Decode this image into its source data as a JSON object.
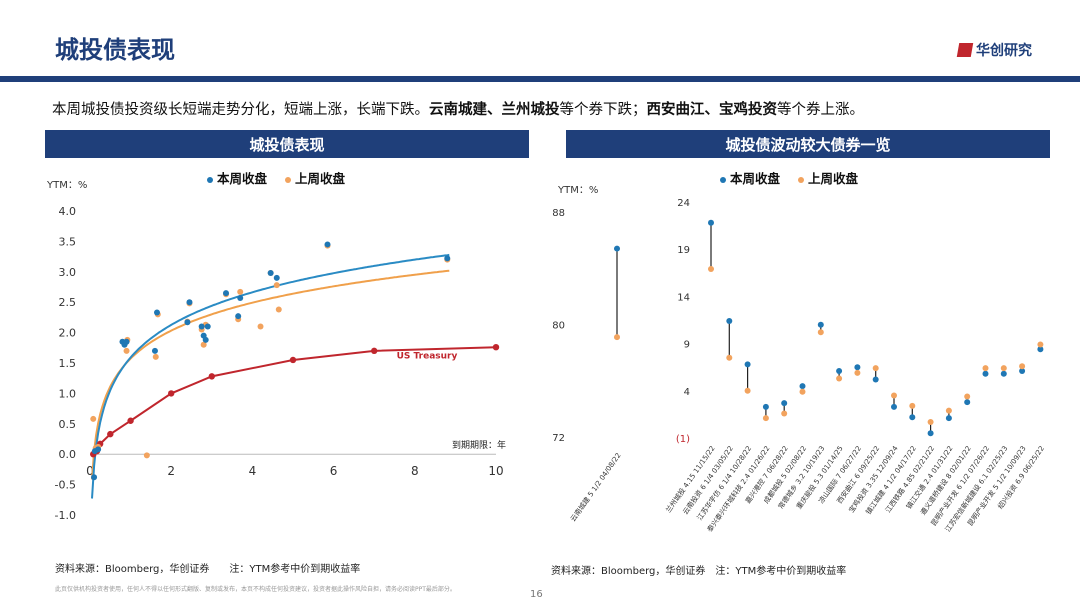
{
  "header": {
    "title": "城投债表现",
    "brand": "华创研究"
  },
  "summary": {
    "part1": "本周城投债投资级长短端走势分化，短端上涨，长端下跌。",
    "bold1": "云南城建、兰州城投",
    "part2": "等个券下跌；",
    "bold2": "西安曲江、宝鸡投资",
    "part3": "等个券上涨。"
  },
  "colors": {
    "navy": "#1f3f7a",
    "this_week": "#1f77b4",
    "last_week": "#f2a35e",
    "treasury": "#c0262d",
    "fit_this": "#2a8bc4",
    "fit_last": "#f0a04b"
  },
  "left_panel": {
    "header": "城投债表现",
    "ylabel": "YTM：%",
    "xlabel": "到期期限：年",
    "legend": [
      "本周收盘",
      "上周收盘"
    ],
    "treasury_label": "US Treasury",
    "source": "资料来源：Bloomberg，华创证券　　注：YTM参考中价到期收益率"
  },
  "right_panel": {
    "header": "城投债波动较大债券一览",
    "ylabel": "YTM：%",
    "legend": [
      "本周收盘",
      "上周收盘"
    ],
    "source": "资料来源：Bloomberg，华创证券　注：YTM参考中价到期收益率"
  },
  "footer": {
    "disclaimer": "此页仅供机构投资者使用，任何人不得以任何形式翻版、复制或发布，本页不构成任何投资建议，投资者据此操作风险自担，请务必阅读PPT最后部分。",
    "page": "16"
  },
  "chart_data": [
    {
      "type": "scatter",
      "title": "城投债表现",
      "xlabel": "到期期限：年",
      "ylabel": "YTM：%",
      "xlim": [
        0,
        10
      ],
      "ylim": [
        -1.0,
        4.0
      ],
      "xticks": [
        "0",
        "2",
        "4",
        "6",
        "8",
        "10"
      ],
      "yticks": [
        "4.0",
        "3.5",
        "3.0",
        "2.5",
        "2.0",
        "1.5",
        "1.0",
        "0.5",
        "0.0",
        "-0.5",
        "-1.0"
      ],
      "grid": false,
      "legend_position": "top",
      "series": [
        {
          "name": "本周收盘",
          "points": [
            [
              0.1,
              -0.38
            ],
            [
              0.12,
              0.05
            ],
            [
              0.2,
              0.08
            ],
            [
              0.8,
              1.85
            ],
            [
              0.85,
              1.8
            ],
            [
              0.9,
              1.85
            ],
            [
              1.6,
              1.7
            ],
            [
              1.65,
              2.33
            ],
            [
              2.4,
              2.17
            ],
            [
              2.45,
              2.5
            ],
            [
              2.75,
              2.1
            ],
            [
              2.8,
              1.95
            ],
            [
              2.85,
              1.88
            ],
            [
              2.9,
              2.1
            ],
            [
              3.35,
              2.65
            ],
            [
              3.65,
              2.27
            ],
            [
              3.7,
              2.57
            ],
            [
              4.45,
              2.98
            ],
            [
              4.6,
              2.9
            ],
            [
              5.85,
              3.45
            ],
            [
              8.8,
              3.22
            ]
          ]
        },
        {
          "name": "上周收盘",
          "points": [
            [
              0.08,
              0.58
            ],
            [
              0.14,
              0.1
            ],
            [
              0.2,
              0.12
            ],
            [
              0.85,
              1.82
            ],
            [
              0.9,
              1.7
            ],
            [
              0.92,
              1.88
            ],
            [
              1.4,
              -0.02
            ],
            [
              1.62,
              1.6
            ],
            [
              1.67,
              2.3
            ],
            [
              2.4,
              2.18
            ],
            [
              2.45,
              2.48
            ],
            [
              2.75,
              2.05
            ],
            [
              2.8,
              1.8
            ],
            [
              2.85,
              2.13
            ],
            [
              3.35,
              2.63
            ],
            [
              3.65,
              2.22
            ],
            [
              3.7,
              2.67
            ],
            [
              4.2,
              2.1
            ],
            [
              4.45,
              2.98
            ],
            [
              4.6,
              2.78
            ],
            [
              4.65,
              2.38
            ],
            [
              5.85,
              3.43
            ],
            [
              8.8,
              3.2
            ]
          ]
        },
        {
          "name": "US Treasury",
          "points": [
            [
              0.08,
              0.0
            ],
            [
              0.17,
              0.05
            ],
            [
              0.25,
              0.17
            ],
            [
              0.5,
              0.33
            ],
            [
              1.0,
              0.55
            ],
            [
              2.0,
              1.0
            ],
            [
              3.0,
              1.28
            ],
            [
              5.0,
              1.55
            ],
            [
              7.0,
              1.7
            ],
            [
              10.0,
              1.76
            ]
          ]
        }
      ]
    },
    {
      "type": "scatter",
      "title": "城投债波动较大债券一览",
      "ylabel": "YTM：%",
      "ylim": [
        72,
        88
      ],
      "yticks": [
        "88",
        "80",
        "72"
      ],
      "grid": false,
      "categories": [
        "云南城建 5 1/2 04/08/22"
      ],
      "series": [
        {
          "name": "本周收盘",
          "values": [
            85.4
          ]
        },
        {
          "name": "上周收盘",
          "values": [
            79.1
          ]
        }
      ]
    },
    {
      "type": "scatter",
      "title": "城投债波动较大债券一览",
      "ylabel": "YTM：%",
      "ylim": [
        -1,
        24
      ],
      "yticks": [
        "24",
        "19",
        "14",
        "9",
        "4",
        "(1)"
      ],
      "grid": false,
      "legend_position": "top",
      "categories": [
        "兰州城投 4.15 11/15/22",
        "云南投资 6 1/4 03/05/22",
        "江苏华宇仿 6 1/4 10/28/22",
        "泰兴泰兴环城科技 2.4 01/26/22",
        "嘉兴港控 7 06/28/22",
        "成都城投 5 02/08/22",
        "常德城乡 3.2 10/19/23",
        "重庆能投 5.3 01/14/25",
        "凉山国际 7 06/27/22",
        "西安曲江 6 09/25/22",
        "宝鸡投资 3.35 12/09/24",
        "镇江城建 4 1/2 04/17/22",
        "江西铁路 4.85 02/21/22",
        "镇江交通 2.4 01/31/22",
        "遵义道桥建设 8 02/01/22",
        "昆明产业开发 6 1/2 07/26/22",
        "江苏宏信新城建设 6.1 02/25/23",
        "昆明产业开发 5 1/2 10/09/23",
        "绍兴投资 6.9 06/25/22"
      ],
      "series": [
        {
          "name": "本周收盘",
          "values": [
            21.8,
            11.4,
            6.8,
            2.3,
            2.7,
            4.5,
            11.0,
            6.1,
            6.5,
            5.2,
            2.3,
            1.2,
            -0.5,
            1.1,
            2.8,
            5.8,
            5.8,
            6.1,
            8.4
          ]
        },
        {
          "name": "上周收盘",
          "values": [
            16.9,
            7.5,
            4.0,
            1.1,
            1.6,
            3.9,
            10.2,
            5.3,
            5.9,
            6.4,
            3.5,
            2.4,
            0.7,
            1.9,
            3.4,
            6.4,
            6.4,
            6.6,
            8.9
          ]
        }
      ]
    }
  ]
}
